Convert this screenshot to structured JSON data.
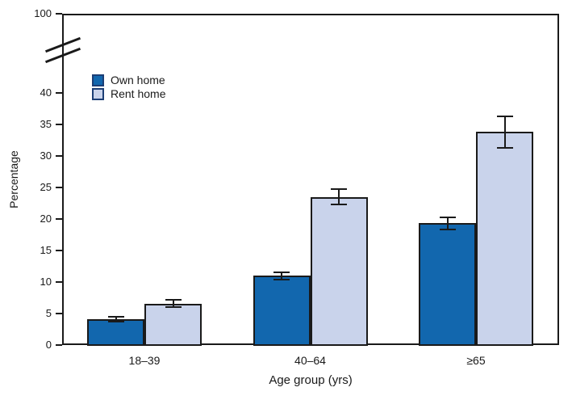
{
  "chart_data": {
    "type": "bar",
    "title": "",
    "xlabel": "Age group (yrs)",
    "ylabel": "Percentage",
    "categories": [
      "18–39",
      "40–64",
      "≥65"
    ],
    "series": [
      {
        "name": "Own home",
        "color": "#1267AE",
        "values": [
          4.1,
          11.0,
          19.3
        ],
        "ci_low": [
          3.7,
          10.4,
          18.3
        ],
        "ci_high": [
          4.5,
          11.6,
          20.3
        ]
      },
      {
        "name": "Rent home",
        "color": "#C9D3EB",
        "values": [
          6.6,
          23.5,
          33.8
        ],
        "ci_low": [
          6.0,
          22.3,
          31.3
        ],
        "ci_high": [
          7.2,
          24.7,
          36.3
        ]
      }
    ],
    "y_ticks": [
      0,
      5,
      10,
      15,
      20,
      25,
      30,
      35,
      40
    ],
    "y_break_top_tick": 100,
    "ylim": [
      0,
      45
    ],
    "axis_break": true,
    "grid": false,
    "legend_position": "top-left-inside",
    "error_bars": true,
    "axis_color": "#1a1a1a"
  }
}
